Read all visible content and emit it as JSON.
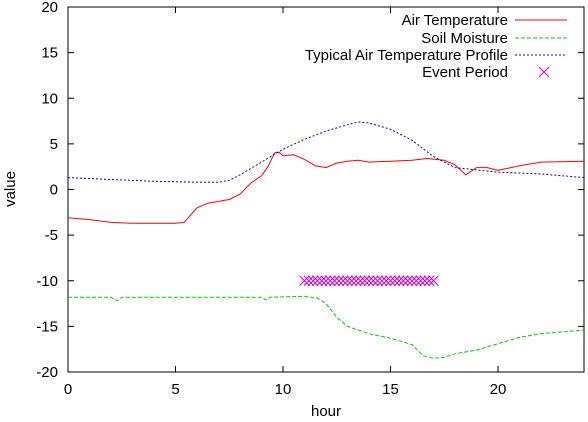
{
  "chart_data": {
    "type": "line",
    "xlabel": "hour",
    "ylabel": "value",
    "xlim": [
      0,
      24
    ],
    "ylim": [
      -20,
      20
    ],
    "x_ticks": [
      "0",
      "5",
      "10",
      "15",
      "20"
    ],
    "x_tick_values": [
      0,
      5,
      10,
      15,
      20
    ],
    "y_ticks": [
      "20",
      "15",
      "10",
      "5",
      "0",
      "-5",
      "-10",
      "-15",
      "-20"
    ],
    "y_tick_values": [
      20,
      15,
      10,
      5,
      0,
      -5,
      -10,
      -15,
      -20
    ],
    "grid": false,
    "legend_position": "top-right",
    "series": [
      {
        "name": "Air Temperature",
        "style": "solid",
        "color": "#ff0000",
        "points": [
          [
            0,
            -3.1
          ],
          [
            1,
            -3.3
          ],
          [
            2,
            -3.6
          ],
          [
            3,
            -3.7
          ],
          [
            4,
            -3.7
          ],
          [
            5,
            -3.7
          ],
          [
            5.4,
            -3.6
          ],
          [
            6,
            -2.0
          ],
          [
            6.5,
            -1.5
          ],
          [
            7,
            -1.3
          ],
          [
            7.5,
            -1.1
          ],
          [
            8,
            -0.5
          ],
          [
            8.5,
            0.7
          ],
          [
            9,
            1.5
          ],
          [
            9.3,
            2.5
          ],
          [
            9.6,
            4.0
          ],
          [
            9.8,
            4.1
          ],
          [
            10,
            3.7
          ],
          [
            10.5,
            3.8
          ],
          [
            11,
            3.3
          ],
          [
            11.5,
            2.6
          ],
          [
            12,
            2.4
          ],
          [
            12.5,
            2.9
          ],
          [
            13,
            3.1
          ],
          [
            13.5,
            3.2
          ],
          [
            14,
            3.0
          ],
          [
            15,
            3.1
          ],
          [
            16,
            3.2
          ],
          [
            16.7,
            3.4
          ],
          [
            17.5,
            3.2
          ],
          [
            18,
            2.7
          ],
          [
            18.5,
            1.6
          ],
          [
            19,
            2.4
          ],
          [
            19.5,
            2.4
          ],
          [
            20,
            2.1
          ],
          [
            21,
            2.6
          ],
          [
            22,
            3.0
          ],
          [
            24,
            3.1
          ]
        ]
      },
      {
        "name": "Soil Moisture",
        "style": "dashed",
        "color": "#00cc00",
        "points": [
          [
            0,
            -11.8
          ],
          [
            2,
            -11.8
          ],
          [
            2.3,
            -12.2
          ],
          [
            2.5,
            -11.8
          ],
          [
            9,
            -11.8
          ],
          [
            9.2,
            -12.1
          ],
          [
            9.4,
            -11.8
          ],
          [
            11,
            -11.7
          ],
          [
            11.6,
            -11.9
          ],
          [
            12,
            -12.5
          ],
          [
            12.5,
            -14.0
          ],
          [
            13,
            -15.0
          ],
          [
            14,
            -15.8
          ],
          [
            15,
            -16.3
          ],
          [
            16,
            -17.0
          ],
          [
            16.5,
            -18.2
          ],
          [
            17,
            -18.5
          ],
          [
            17.5,
            -18.4
          ],
          [
            18,
            -18.0
          ],
          [
            19,
            -17.6
          ],
          [
            20,
            -16.9
          ],
          [
            21,
            -16.2
          ],
          [
            22,
            -15.8
          ],
          [
            23,
            -15.6
          ],
          [
            24,
            -15.4
          ]
        ]
      },
      {
        "name": "Typical Air Temperature Profile",
        "style": "dotted",
        "color": "#0000cc",
        "points": [
          [
            0,
            1.3
          ],
          [
            2,
            1.1
          ],
          [
            4,
            0.9
          ],
          [
            6,
            0.8
          ],
          [
            7,
            0.8
          ],
          [
            7.5,
            1.0
          ],
          [
            8,
            1.6
          ],
          [
            9,
            3.0
          ],
          [
            10,
            4.4
          ],
          [
            11,
            5.5
          ],
          [
            12,
            6.4
          ],
          [
            13,
            7.1
          ],
          [
            13.5,
            7.4
          ],
          [
            14,
            7.3
          ],
          [
            15,
            6.6
          ],
          [
            16,
            5.4
          ],
          [
            17,
            3.6
          ],
          [
            18,
            2.4
          ],
          [
            20,
            1.9
          ],
          [
            22,
            1.7
          ],
          [
            24,
            1.3
          ]
        ]
      },
      {
        "name": "Event Period",
        "style": "markers",
        "marker": "x",
        "color": "#cc00cc",
        "points": [
          [
            11.0,
            -10
          ],
          [
            11.2,
            -10
          ],
          [
            11.4,
            -10
          ],
          [
            11.6,
            -10
          ],
          [
            11.8,
            -10
          ],
          [
            12.0,
            -10
          ],
          [
            12.2,
            -10
          ],
          [
            12.4,
            -10
          ],
          [
            12.6,
            -10
          ],
          [
            12.8,
            -10
          ],
          [
            13.0,
            -10
          ],
          [
            13.2,
            -10
          ],
          [
            13.4,
            -10
          ],
          [
            13.6,
            -10
          ],
          [
            13.8,
            -10
          ],
          [
            14.0,
            -10
          ],
          [
            14.2,
            -10
          ],
          [
            14.4,
            -10
          ],
          [
            14.6,
            -10
          ],
          [
            14.8,
            -10
          ],
          [
            15.0,
            -10
          ],
          [
            15.2,
            -10
          ],
          [
            15.4,
            -10
          ],
          [
            15.6,
            -10
          ],
          [
            15.8,
            -10
          ],
          [
            16.0,
            -10
          ],
          [
            16.2,
            -10
          ],
          [
            16.4,
            -10
          ],
          [
            16.6,
            -10
          ],
          [
            16.8,
            -10
          ],
          [
            17.0,
            -10
          ]
        ]
      }
    ]
  }
}
